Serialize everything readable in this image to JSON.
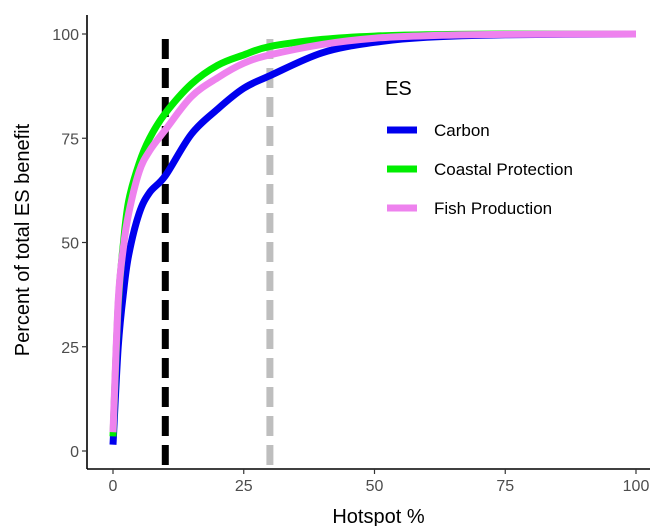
{
  "chart_data": {
    "type": "line",
    "title": "",
    "xlabel": "Hotspot %",
    "ylabel": "Percent of total ES benefit",
    "xlim": [
      0,
      100
    ],
    "ylim": [
      0,
      100
    ],
    "x_ticks": [
      0,
      25,
      50,
      75,
      100
    ],
    "y_ticks": [
      0,
      25,
      50,
      75,
      100
    ],
    "x_tick_labels": [
      "0",
      "25",
      "50",
      "75",
      "100"
    ],
    "y_tick_labels": [
      "0",
      "25",
      "50",
      "75",
      "100"
    ],
    "grid": false,
    "legend": {
      "title": "ES",
      "position": "right-inside"
    },
    "x": [
      0,
      1,
      2,
      3,
      5,
      7,
      10,
      15,
      20,
      25,
      30,
      40,
      50,
      60,
      75,
      100
    ],
    "series": [
      {
        "name": "Carbon",
        "color": "#0000ee",
        "values": [
          1.5,
          25,
          38,
          47,
          57,
          62,
          66,
          76,
          82,
          87,
          90,
          95.5,
          98,
          99.2,
          99.8,
          100
        ]
      },
      {
        "name": "Coastal Protection",
        "color": "#00ee00",
        "values": [
          3.5,
          35,
          50,
          60,
          69,
          75,
          81,
          88,
          92.5,
          95,
          97,
          98.7,
          99.5,
          99.8,
          100,
          100
        ]
      },
      {
        "name": "Fish Production",
        "color": "#ee82ee",
        "values": [
          4.5,
          36,
          49,
          57,
          67,
          72,
          77,
          85,
          89.5,
          93,
          95,
          97.5,
          99,
          99.6,
          99.9,
          100
        ]
      }
    ],
    "reference_lines": [
      {
        "x": 10,
        "color": "#000000",
        "style": "dashed"
      },
      {
        "x": 30,
        "color": "#bebebe",
        "style": "dashed"
      }
    ]
  }
}
